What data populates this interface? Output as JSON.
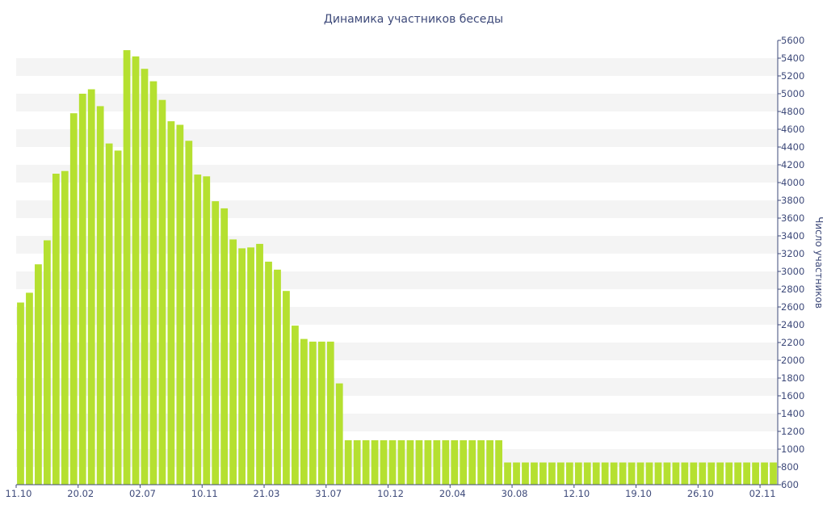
{
  "chart_data": {
    "type": "bar",
    "title": "Динамика участников беседы",
    "ylabel": "Число участников",
    "ylim": [
      600,
      5600
    ],
    "y_ticks": [
      600,
      800,
      1000,
      1200,
      1400,
      1600,
      1800,
      2000,
      2200,
      2400,
      2600,
      2800,
      3000,
      3200,
      3400,
      3600,
      3800,
      4000,
      4200,
      4400,
      4600,
      4800,
      5000,
      5200,
      5400,
      5600
    ],
    "y_axis_position": "right",
    "x_tick_labels": [
      "11.10",
      "20.02",
      "02.07",
      "10.11",
      "21.03",
      "31.07",
      "10.12",
      "20.04",
      "30.08",
      "12.10",
      "19.10",
      "26.10",
      "02.11"
    ],
    "x_tick_bar_index": [
      0,
      7,
      14,
      21,
      28,
      35,
      42,
      49,
      56,
      63,
      70,
      77,
      84
    ],
    "values": [
      2650,
      2760,
      3080,
      3350,
      4100,
      4130,
      4780,
      5000,
      5050,
      4860,
      4440,
      4360,
      5490,
      5420,
      5280,
      5140,
      4930,
      4690,
      4650,
      4470,
      4090,
      4070,
      3790,
      3710,
      3360,
      3260,
      3270,
      3310,
      3110,
      3020,
      2780,
      2390,
      2240,
      2210,
      2210,
      2210,
      1740,
      1100,
      1100,
      1100,
      1100,
      1100,
      1100,
      1100,
      1100,
      1100,
      1100,
      1100,
      1100,
      1100,
      1100,
      1100,
      1100,
      1100,
      1100,
      850,
      850,
      850,
      850,
      850,
      850,
      850,
      850,
      850,
      850,
      850,
      850,
      850,
      850,
      850,
      850,
      850,
      850,
      850,
      850,
      850,
      850,
      850,
      850,
      850,
      850,
      850,
      850,
      850,
      850,
      850
    ],
    "grid": "horizontal-bands",
    "legend": "none",
    "colors": {
      "bar": "#b5e030",
      "band": "#f4f4f4",
      "text": "#3e4a7a",
      "axis": "#3e4a7a"
    }
  }
}
